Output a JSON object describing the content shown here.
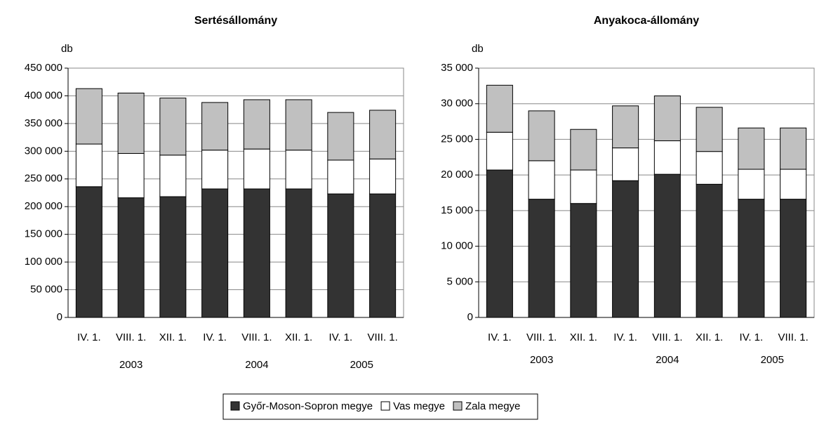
{
  "chart_data": [
    {
      "type": "stacked_bar",
      "title": "Sertésállomány",
      "ylabel": "db",
      "categories": [
        "IV. 1.",
        "VIII. 1.",
        "XII. 1.",
        "IV. 1.",
        "VIII. 1.",
        "XII. 1.",
        "IV. 1.",
        "VIII. 1."
      ],
      "group_labels": [
        "2003",
        "2004",
        "2005"
      ],
      "group_sizes": [
        3,
        3,
        2
      ],
      "series": [
        {
          "name": "Győr-Moson-Sopron megye",
          "color": "#333333",
          "values": [
            236000,
            216000,
            218000,
            232000,
            232000,
            232000,
            223000,
            223000
          ]
        },
        {
          "name": "Vas megye",
          "color": "#ffffff",
          "values": [
            77000,
            80000,
            75000,
            70000,
            72000,
            70000,
            61000,
            63000
          ]
        },
        {
          "name": "Zala megye",
          "color": "#c0c0c0",
          "values": [
            100000,
            109000,
            103000,
            86000,
            89000,
            91000,
            86000,
            88000
          ]
        }
      ],
      "ylim": [
        0,
        450000
      ],
      "yticks": [
        0,
        {
          "value": 50000,
          "label": "50 000"
        },
        {
          "value": 100000,
          "label": "100 000"
        },
        {
          "value": 150000,
          "label": "150 000"
        },
        {
          "value": 200000,
          "label": "200 000"
        },
        {
          "value": 250000,
          "label": "250 000"
        },
        {
          "value": 300000,
          "label": "300 000"
        },
        {
          "value": 350000,
          "label": "350 000"
        },
        {
          "value": 400000,
          "label": "400 000"
        },
        {
          "value": 450000,
          "label": "450 000"
        }
      ],
      "grid": true
    },
    {
      "type": "stacked_bar",
      "title": "Anyakoca-állomány",
      "ylabel": "db",
      "categories": [
        "IV. 1.",
        "VIII. 1.",
        "XII. 1.",
        "IV. 1.",
        "VIII. 1.",
        "XII. 1.",
        "IV. 1.",
        "VIII. 1."
      ],
      "group_labels": [
        "2003",
        "2004",
        "2005"
      ],
      "group_sizes": [
        3,
        3,
        2
      ],
      "series": [
        {
          "color": "#333333",
          "values": [
            20700,
            16600,
            16000,
            19200,
            20100,
            18700,
            16600,
            16600
          ]
        },
        {
          "color": "#ffffff",
          "values": [
            5300,
            5400,
            4700,
            4600,
            4700,
            4600,
            4200,
            4200
          ]
        },
        {
          "color": "#c0c0c0",
          "values": [
            6600,
            7000,
            5700,
            5900,
            6300,
            6200,
            5800,
            5800
          ]
        }
      ],
      "ylim": [
        0,
        35000
      ],
      "yticks": [
        0,
        {
          "value": 5000,
          "label": "5 000"
        },
        {
          "value": 10000,
          "label": "10 000"
        },
        {
          "value": 15000,
          "label": "15 000"
        },
        {
          "value": 20000,
          "label": "20 000"
        },
        {
          "value": 25000,
          "label": "25 000"
        },
        {
          "value": 30000,
          "label": "30 000"
        },
        {
          "value": 35000,
          "label": "35 000"
        }
      ],
      "grid": true
    }
  ]
}
